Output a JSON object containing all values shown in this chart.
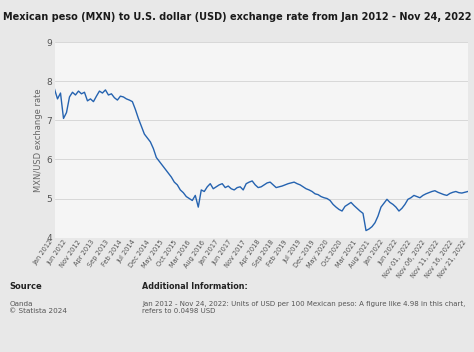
{
  "title": "Mexican peso (MXN) to U.S. dollar (USD) exchange rate from Jan 2012 - Nov 24, 2022",
  "ylabel": "MXN/USD exchange rate",
  "line_color": "#2563b0",
  "background_color": "#e8e8e8",
  "plot_bg_color": "#f5f5f5",
  "ylim": [
    4,
    9
  ],
  "yticks": [
    4,
    5,
    6,
    7,
    8,
    9
  ],
  "source_label": "Source",
  "source_body": "Oanda\n© Statista 2024",
  "addinfo_label": "Additional Information:",
  "addinfo_body": "Jan 2012 - Nov 24, 2022: Units of USD per 100 Mexican peso: A figure like 4.98 in this chart,  refers to 0.0498 USD",
  "xtick_labels": [
    "Jan 2012",
    "Jun 2012",
    "Nov 2012",
    "Apr 2013",
    "Sep 2013",
    "Feb 2014",
    "Jul 2014",
    "Dec 2014",
    "May 2015",
    "Oct 2015",
    "Mar 2016",
    "Aug 2016",
    "Jan 2017",
    "Jun 2017",
    "Nov 2017",
    "Apr 2018",
    "Sep 2018",
    "Feb 2019",
    "Jul 2019",
    "Dec 2019",
    "May 2020",
    "Oct 2020",
    "Mar 2021",
    "Aug 2021",
    "Jan 2022",
    "Jun 2022",
    "Nov 01, 2022",
    "Nov 06, 2022",
    "Nov 11, 2022",
    "Nov 16, 2022",
    "Nov 21, 2022"
  ],
  "values": [
    7.8,
    7.55,
    7.7,
    7.05,
    7.2,
    7.6,
    7.72,
    7.65,
    7.75,
    7.68,
    7.72,
    7.5,
    7.55,
    7.48,
    7.62,
    7.75,
    7.7,
    7.78,
    7.65,
    7.68,
    7.58,
    7.52,
    7.62,
    7.6,
    7.55,
    7.52,
    7.48,
    7.28,
    7.05,
    6.85,
    6.65,
    6.55,
    6.45,
    6.28,
    6.05,
    5.95,
    5.85,
    5.75,
    5.65,
    5.55,
    5.42,
    5.35,
    5.22,
    5.15,
    5.05,
    5.0,
    4.95,
    5.08,
    4.78,
    5.22,
    5.18,
    5.3,
    5.38,
    5.25,
    5.3,
    5.35,
    5.38,
    5.28,
    5.32,
    5.25,
    5.22,
    5.28,
    5.3,
    5.22,
    5.38,
    5.42,
    5.45,
    5.35,
    5.28,
    5.3,
    5.35,
    5.4,
    5.42,
    5.35,
    5.28,
    5.3,
    5.32,
    5.35,
    5.38,
    5.4,
    5.42,
    5.38,
    5.35,
    5.3,
    5.25,
    5.22,
    5.18,
    5.12,
    5.1,
    5.05,
    5.02,
    5.0,
    4.95,
    4.85,
    4.78,
    4.72,
    4.68,
    4.8,
    4.85,
    4.9,
    4.82,
    4.75,
    4.68,
    4.62,
    4.18,
    4.22,
    4.28,
    4.38,
    4.55,
    4.78,
    4.88,
    4.98,
    4.9,
    4.85,
    4.78,
    4.68,
    4.75,
    4.85,
    4.98,
    5.02,
    5.08,
    5.05,
    5.02,
    5.08,
    5.12,
    5.15,
    5.18,
    5.2,
    5.16,
    5.13,
    5.1,
    5.08,
    5.13,
    5.16,
    5.18,
    5.15,
    5.14,
    5.16,
    5.18
  ]
}
